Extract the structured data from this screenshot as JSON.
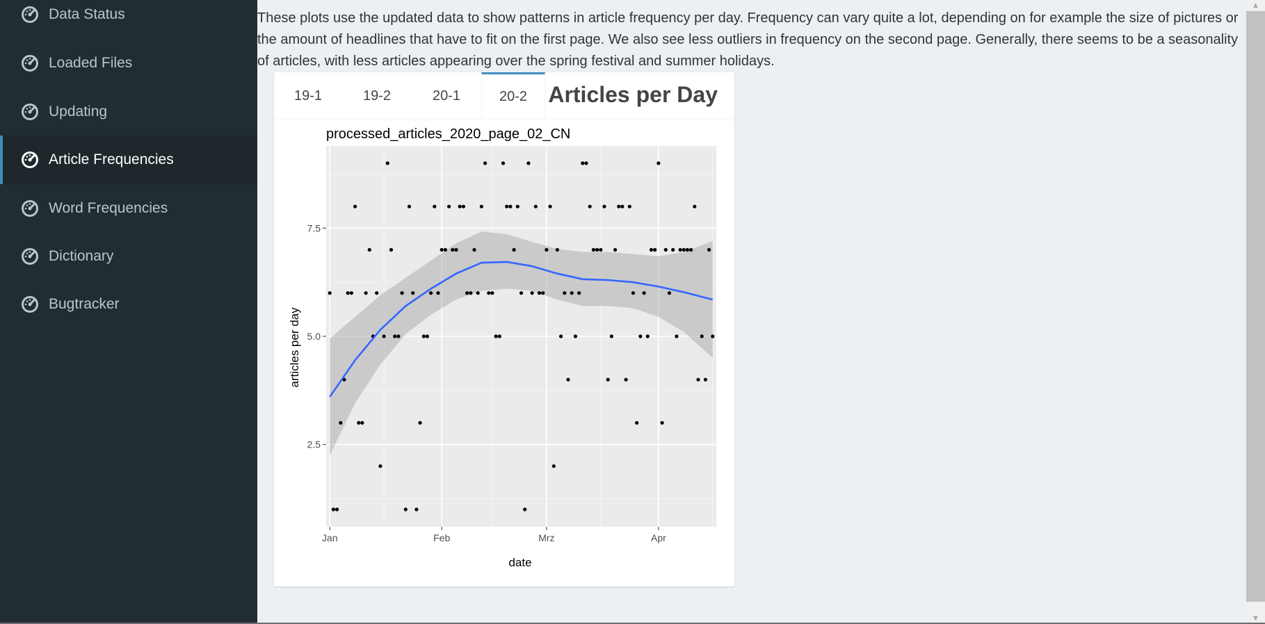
{
  "sidebar": {
    "items": [
      {
        "label": "Data Status",
        "icon": "dashboard-icon",
        "active": false
      },
      {
        "label": "Loaded Files",
        "icon": "dashboard-icon",
        "active": false
      },
      {
        "label": "Updating",
        "icon": "dashboard-icon",
        "active": false
      },
      {
        "label": "Article Frequencies",
        "icon": "dashboard-icon",
        "active": true
      },
      {
        "label": "Word Frequencies",
        "icon": "dashboard-icon",
        "active": false
      },
      {
        "label": "Dictionary",
        "icon": "dashboard-icon",
        "active": false
      },
      {
        "label": "Bugtracker",
        "icon": "dashboard-icon",
        "active": false
      }
    ]
  },
  "main": {
    "intro": "These plots use the updated data to show patterns in article frequency per day. Frequency can vary quite a lot, depending on for example the size of pictures or the amount of headlines that have to fit on the first page. We also see less outliers in frequency on the second page. Generally, there seems to be a seasonality of articles, with less articles appearing over the spring festival and summer holidays.",
    "box": {
      "title": "Articles per Day",
      "tabs": [
        "19-1",
        "19-2",
        "20-1",
        "20-2"
      ],
      "active_tab": "20-2"
    }
  },
  "colors": {
    "sidebar_bg": "#222d32",
    "sidebar_active_bg": "#1e282c",
    "accent": "#3c8dbc",
    "smooth_line": "#3366ff",
    "panel_bg": "#ebebeb",
    "ribbon": "#c4c4c4"
  },
  "chart_data": {
    "type": "scatter",
    "title": "processed_articles_2020_page_02_CN",
    "xlabel": "date",
    "ylabel": "articles per day",
    "x_ticks": [
      "Jan",
      "Feb",
      "Mrz",
      "Apr"
    ],
    "y_ticks": [
      "2.5",
      "5.0",
      "7.5"
    ],
    "xlim": [
      "2019-12-31",
      "2020-04-17"
    ],
    "ylim": [
      0.6,
      9.4
    ],
    "grid": true,
    "points": [
      [
        "2020-01-01",
        6
      ],
      [
        "2020-01-02",
        1
      ],
      [
        "2020-01-03",
        1
      ],
      [
        "2020-01-04",
        3
      ],
      [
        "2020-01-05",
        4
      ],
      [
        "2020-01-06",
        6
      ],
      [
        "2020-01-07",
        6
      ],
      [
        "2020-01-08",
        8
      ],
      [
        "2020-01-09",
        3
      ],
      [
        "2020-01-10",
        3
      ],
      [
        "2020-01-11",
        6
      ],
      [
        "2020-01-12",
        7
      ],
      [
        "2020-01-13",
        5
      ],
      [
        "2020-01-14",
        6
      ],
      [
        "2020-01-15",
        2
      ],
      [
        "2020-01-16",
        5
      ],
      [
        "2020-01-17",
        9
      ],
      [
        "2020-01-18",
        7
      ],
      [
        "2020-01-19",
        5
      ],
      [
        "2020-01-20",
        5
      ],
      [
        "2020-01-21",
        6
      ],
      [
        "2020-01-22",
        1
      ],
      [
        "2020-01-23",
        8
      ],
      [
        "2020-01-24",
        6
      ],
      [
        "2020-01-25",
        1
      ],
      [
        "2020-01-26",
        3
      ],
      [
        "2020-01-27",
        5
      ],
      [
        "2020-01-28",
        5
      ],
      [
        "2020-01-29",
        6
      ],
      [
        "2020-01-30",
        8
      ],
      [
        "2020-01-31",
        6
      ],
      [
        "2020-02-01",
        7
      ],
      [
        "2020-02-02",
        7
      ],
      [
        "2020-02-03",
        8
      ],
      [
        "2020-02-04",
        7
      ],
      [
        "2020-02-05",
        7
      ],
      [
        "2020-02-06",
        8
      ],
      [
        "2020-02-07",
        8
      ],
      [
        "2020-02-08",
        6
      ],
      [
        "2020-02-09",
        6
      ],
      [
        "2020-02-10",
        7
      ],
      [
        "2020-02-11",
        6
      ],
      [
        "2020-02-12",
        8
      ],
      [
        "2020-02-13",
        9
      ],
      [
        "2020-02-14",
        6
      ],
      [
        "2020-02-15",
        6
      ],
      [
        "2020-02-16",
        5
      ],
      [
        "2020-02-17",
        5
      ],
      [
        "2020-02-18",
        9
      ],
      [
        "2020-02-19",
        8
      ],
      [
        "2020-02-20",
        8
      ],
      [
        "2020-02-21",
        7
      ],
      [
        "2020-02-22",
        8
      ],
      [
        "2020-02-23",
        6
      ],
      [
        "2020-02-24",
        1
      ],
      [
        "2020-02-25",
        9
      ],
      [
        "2020-02-26",
        6
      ],
      [
        "2020-02-27",
        8
      ],
      [
        "2020-02-28",
        6
      ],
      [
        "2020-02-29",
        6
      ],
      [
        "2020-03-01",
        7
      ],
      [
        "2020-03-02",
        8
      ],
      [
        "2020-03-03",
        2
      ],
      [
        "2020-03-04",
        7
      ],
      [
        "2020-03-05",
        5
      ],
      [
        "2020-03-06",
        6
      ],
      [
        "2020-03-07",
        4
      ],
      [
        "2020-03-08",
        6
      ],
      [
        "2020-03-09",
        5
      ],
      [
        "2020-03-10",
        6
      ],
      [
        "2020-03-11",
        9
      ],
      [
        "2020-03-12",
        9
      ],
      [
        "2020-03-13",
        8
      ],
      [
        "2020-03-14",
        7
      ],
      [
        "2020-03-15",
        7
      ],
      [
        "2020-03-16",
        7
      ],
      [
        "2020-03-17",
        8
      ],
      [
        "2020-03-18",
        4
      ],
      [
        "2020-03-19",
        5
      ],
      [
        "2020-03-20",
        7
      ],
      [
        "2020-03-21",
        8
      ],
      [
        "2020-03-22",
        8
      ],
      [
        "2020-03-23",
        4
      ],
      [
        "2020-03-24",
        8
      ],
      [
        "2020-03-25",
        6
      ],
      [
        "2020-03-26",
        3
      ],
      [
        "2020-03-27",
        5
      ],
      [
        "2020-03-28",
        6
      ],
      [
        "2020-03-29",
        5
      ],
      [
        "2020-03-30",
        7
      ],
      [
        "2020-03-31",
        7
      ],
      [
        "2020-04-01",
        9
      ],
      [
        "2020-04-02",
        3
      ],
      [
        "2020-04-03",
        7
      ],
      [
        "2020-04-04",
        6
      ],
      [
        "2020-04-05",
        7
      ],
      [
        "2020-04-06",
        5
      ],
      [
        "2020-04-07",
        7
      ],
      [
        "2020-04-08",
        7
      ],
      [
        "2020-04-09",
        7
      ],
      [
        "2020-04-10",
        7
      ],
      [
        "2020-04-11",
        8
      ],
      [
        "2020-04-12",
        4
      ],
      [
        "2020-04-13",
        5
      ],
      [
        "2020-04-14",
        4
      ],
      [
        "2020-04-15",
        7
      ],
      [
        "2020-04-16",
        5
      ]
    ],
    "smooth_line": [
      [
        "2020-01-01",
        3.6
      ],
      [
        "2020-01-08",
        4.45
      ],
      [
        "2020-01-15",
        5.15
      ],
      [
        "2020-01-22",
        5.7
      ],
      [
        "2020-01-29",
        6.1
      ],
      [
        "2020-02-05",
        6.45
      ],
      [
        "2020-02-12",
        6.7
      ],
      [
        "2020-02-19",
        6.72
      ],
      [
        "2020-02-26",
        6.62
      ],
      [
        "2020-03-04",
        6.45
      ],
      [
        "2020-03-11",
        6.32
      ],
      [
        "2020-03-18",
        6.3
      ],
      [
        "2020-03-25",
        6.25
      ],
      [
        "2020-04-01",
        6.15
      ],
      [
        "2020-04-08",
        6.02
      ],
      [
        "2020-04-16",
        5.85
      ]
    ],
    "ribbon_upper": [
      [
        "2020-01-01",
        4.95
      ],
      [
        "2020-01-08",
        5.45
      ],
      [
        "2020-01-15",
        5.95
      ],
      [
        "2020-01-22",
        6.35
      ],
      [
        "2020-01-29",
        6.75
      ],
      [
        "2020-02-05",
        7.15
      ],
      [
        "2020-02-12",
        7.42
      ],
      [
        "2020-02-19",
        7.36
      ],
      [
        "2020-02-26",
        7.18
      ],
      [
        "2020-03-04",
        7.02
      ],
      [
        "2020-03-11",
        6.95
      ],
      [
        "2020-03-18",
        6.95
      ],
      [
        "2020-03-25",
        6.9
      ],
      [
        "2020-04-01",
        6.85
      ],
      [
        "2020-04-08",
        6.95
      ],
      [
        "2020-04-16",
        7.2
      ]
    ],
    "ribbon_lower": [
      [
        "2020-01-01",
        2.25
      ],
      [
        "2020-01-08",
        3.45
      ],
      [
        "2020-01-15",
        4.35
      ],
      [
        "2020-01-22",
        5.05
      ],
      [
        "2020-01-29",
        5.5
      ],
      [
        "2020-02-05",
        5.85
      ],
      [
        "2020-02-12",
        6.05
      ],
      [
        "2020-02-19",
        6.1
      ],
      [
        "2020-02-26",
        6.05
      ],
      [
        "2020-03-04",
        5.85
      ],
      [
        "2020-03-11",
        5.7
      ],
      [
        "2020-03-18",
        5.7
      ],
      [
        "2020-03-25",
        5.65
      ],
      [
        "2020-04-01",
        5.45
      ],
      [
        "2020-04-08",
        5.1
      ],
      [
        "2020-04-16",
        4.5
      ]
    ]
  }
}
